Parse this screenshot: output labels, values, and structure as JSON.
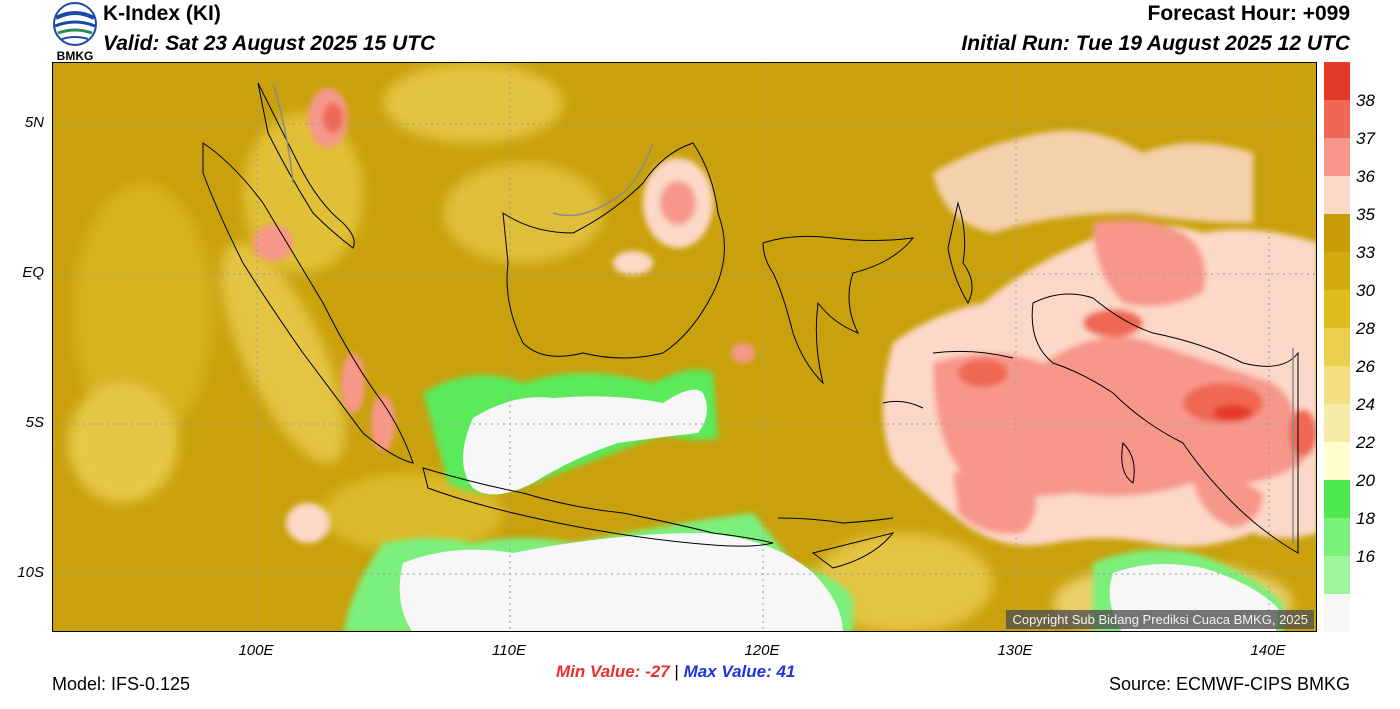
{
  "header": {
    "title": "K-Index (KI)",
    "valid": "Valid: Sat 23 August 2025 15 UTC",
    "forecast_hour": "Forecast Hour: +099",
    "initial_run": "Initial Run: Tue 19 August 2025 12 UTC",
    "logo_text": "BMKG"
  },
  "map": {
    "lat_labels": [
      "5N",
      "EQ",
      "5S",
      "10S"
    ],
    "lon_labels": [
      "100E",
      "110E",
      "120E",
      "130E",
      "140E"
    ],
    "copyright": "Copyright Sub Bidang Prediksi Cuaca BMKG, 2025",
    "background_color": "#c9a10c"
  },
  "colorbar": {
    "levels": [
      "38",
      "37",
      "36",
      "35",
      "33",
      "30",
      "28",
      "26",
      "24",
      "22",
      "20",
      "18",
      "16"
    ],
    "colors": [
      "#e33a28",
      "#ef6753",
      "#f7978a",
      "#fcd8c8",
      "#c79c04",
      "#d2aa10",
      "#e0bd1e",
      "#ebd050",
      "#f2df80",
      "#f7eba8",
      "#ffffd0",
      "#50e850",
      "#7bf07b",
      "#9ef59e",
      "#f7f7f7"
    ]
  },
  "footer": {
    "model": "Model: IFS-0.125",
    "min_value": "Min Value: -27",
    "separator": "|",
    "max_value": "Max Value:  41",
    "source": "Source: ECMWF-CIPS BMKG",
    "min_color": "#e8302e",
    "max_color": "#1c33e0"
  }
}
